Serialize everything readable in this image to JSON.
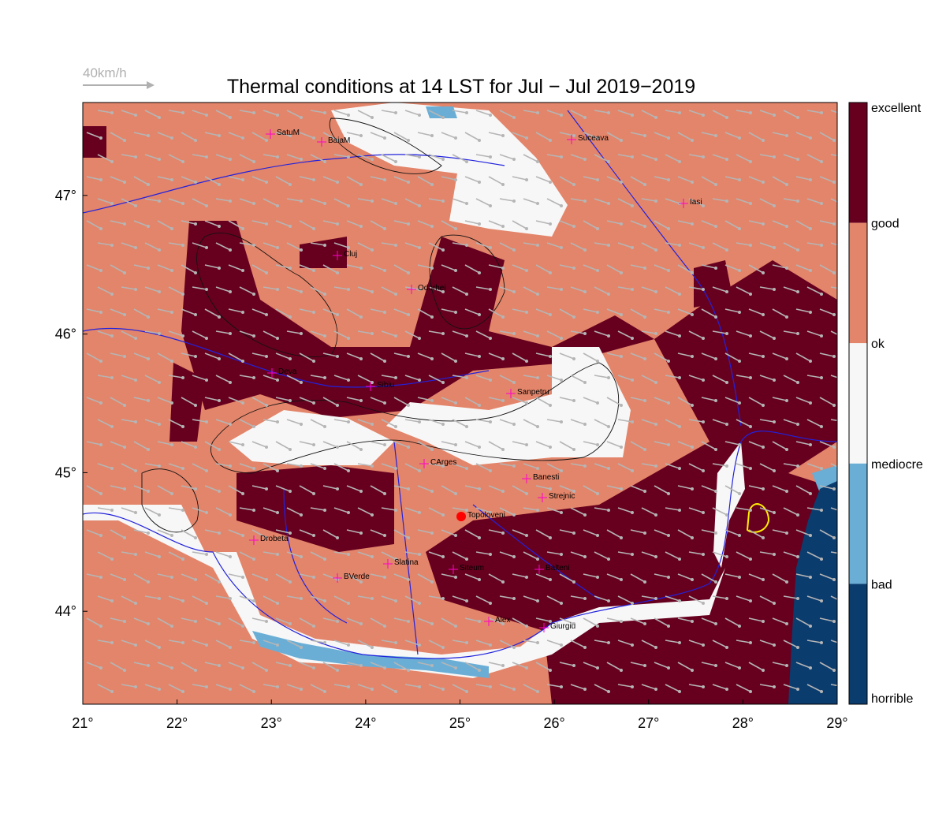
{
  "wind_scale_label": "40km/h",
  "title": "Thermal conditions at 14 LST for Jul − Jul  2019−2019",
  "map": {
    "xlim": [
      21,
      29
    ],
    "xticks": [
      {
        "value": 21,
        "label": "21°"
      },
      {
        "value": 22,
        "label": "22°"
      },
      {
        "value": 23,
        "label": "23°"
      },
      {
        "value": 24,
        "label": "24°"
      },
      {
        "value": 25,
        "label": "25°"
      },
      {
        "value": 26,
        "label": "26°"
      },
      {
        "value": 27,
        "label": "27°"
      },
      {
        "value": 28,
        "label": "28°"
      },
      {
        "value": 29,
        "label": "29°"
      }
    ],
    "ylim": [
      43.33,
      47.67
    ],
    "yticks": [
      {
        "value": 44,
        "label": "44°"
      },
      {
        "value": 45,
        "label": "45°"
      },
      {
        "value": 46,
        "label": "46°"
      },
      {
        "value": 47,
        "label": "47°"
      }
    ]
  },
  "colorbar": {
    "labels": [
      "excellent",
      "good",
      "ok",
      "mediocre",
      "bad",
      "horrible"
    ],
    "colors": [
      "#67001f",
      "#e3856a",
      "#f7f7f7",
      "#6aaed6",
      "#0b3c6e"
    ]
  },
  "cities": [
    "SatuM",
    "BaiaM",
    "Suceava",
    "Iasi",
    "Cluj",
    "Odorhei",
    "Deva",
    "Sibiu",
    "Sanpetru",
    "CArges",
    "Banesti",
    "Strejnic",
    "Topoloveni",
    "Drobeta",
    "Slatina",
    "BVerde",
    "Siteum",
    "Balteni",
    "Alex",
    "Giurgiu"
  ]
}
